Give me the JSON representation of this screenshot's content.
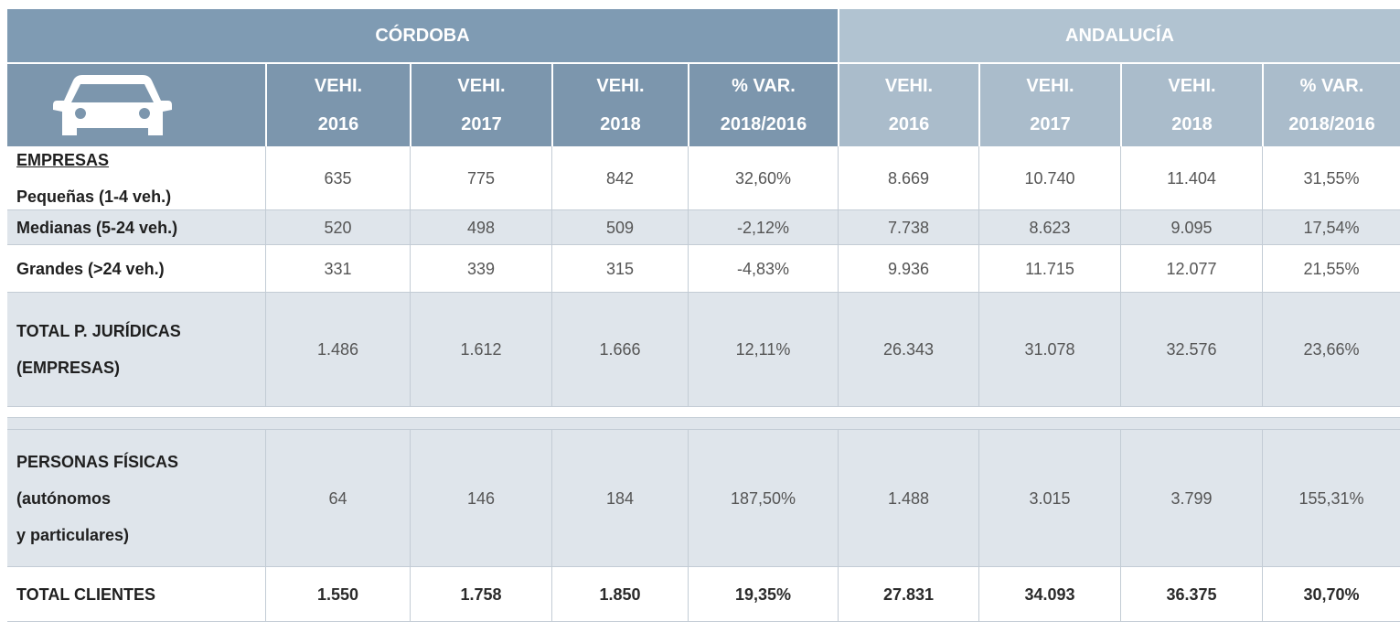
{
  "header": {
    "groups": [
      "CÓRDOBA",
      "ANDALUCÍA"
    ],
    "columns": [
      [
        "VEHI.",
        "2016"
      ],
      [
        "VEHI.",
        "2017"
      ],
      [
        "VEHI.",
        "2018"
      ],
      [
        "% VAR.",
        "2018/2016"
      ],
      [
        "VEHI.",
        "2016"
      ],
      [
        "VEHI.",
        "2017"
      ],
      [
        "VEHI.",
        "2018"
      ],
      [
        "% VAR.",
        "2018/2016"
      ]
    ]
  },
  "table": {
    "rows": [
      {
        "label": [
          "EMPRESAS",
          "Pequeñas (1-4 veh.)"
        ],
        "values": [
          "635",
          "775",
          "842",
          "32,60%",
          "8.669",
          "10.740",
          "11.404",
          "31,55%"
        ]
      },
      {
        "label": [
          "Medianas (5-24 veh.)"
        ],
        "values": [
          "520",
          "498",
          "509",
          "-2,12%",
          "7.738",
          "8.623",
          "9.095",
          "17,54%"
        ]
      },
      {
        "label": [
          "Grandes (>24 veh.)"
        ],
        "values": [
          "331",
          "339",
          "315",
          "-4,83%",
          "9.936",
          "11.715",
          "12.077",
          "21,55%"
        ]
      },
      {
        "label": [
          "TOTAL P. JURÍDICAS",
          "(EMPRESAS)"
        ],
        "values": [
          "1.486",
          "1.612",
          "1.666",
          "12,11%",
          "26.343",
          "31.078",
          "32.576",
          "23,66%"
        ]
      },
      {
        "label": [
          "PERSONAS FÍSICAS",
          "(autónomos",
          "y particulares)"
        ],
        "values": [
          "64",
          "146",
          "184",
          "187,50%",
          "1.488",
          "3.015",
          "3.799",
          "155,31%"
        ]
      },
      {
        "label": [
          "TOTAL CLIENTES"
        ],
        "values": [
          "1.550",
          "1.758",
          "1.850",
          "19,35%",
          "27.831",
          "34.093",
          "36.375",
          "30,70%"
        ]
      }
    ]
  }
}
